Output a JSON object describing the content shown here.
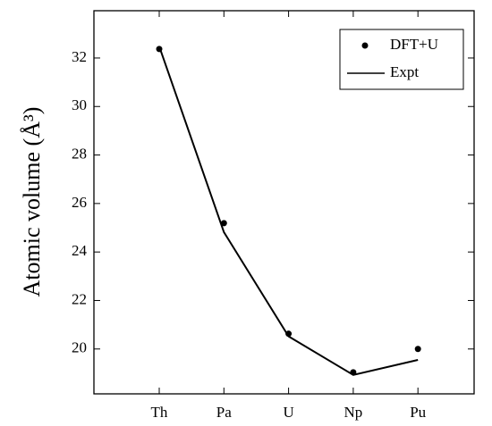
{
  "chart_data": {
    "type": "line",
    "y_label": "Atomic volume (Å³)",
    "categories": [
      "Th",
      "Pa",
      "U",
      "Np",
      "Pu"
    ],
    "series": [
      {
        "name": "DFT+U",
        "color": "#000000",
        "marker": "dot",
        "values": [
          32.37,
          25.19,
          20.63,
          19.04,
          20.0
        ]
      },
      {
        "name": "Expt",
        "color": "#000000",
        "marker": "line",
        "values": [
          32.48,
          24.82,
          20.52,
          18.93,
          19.55
        ]
      }
    ],
    "ylim": [
      18.15,
      33.95
    ],
    "yticks": [
      20,
      22,
      24,
      26,
      28,
      30,
      32
    ],
    "legend": "upper right"
  }
}
